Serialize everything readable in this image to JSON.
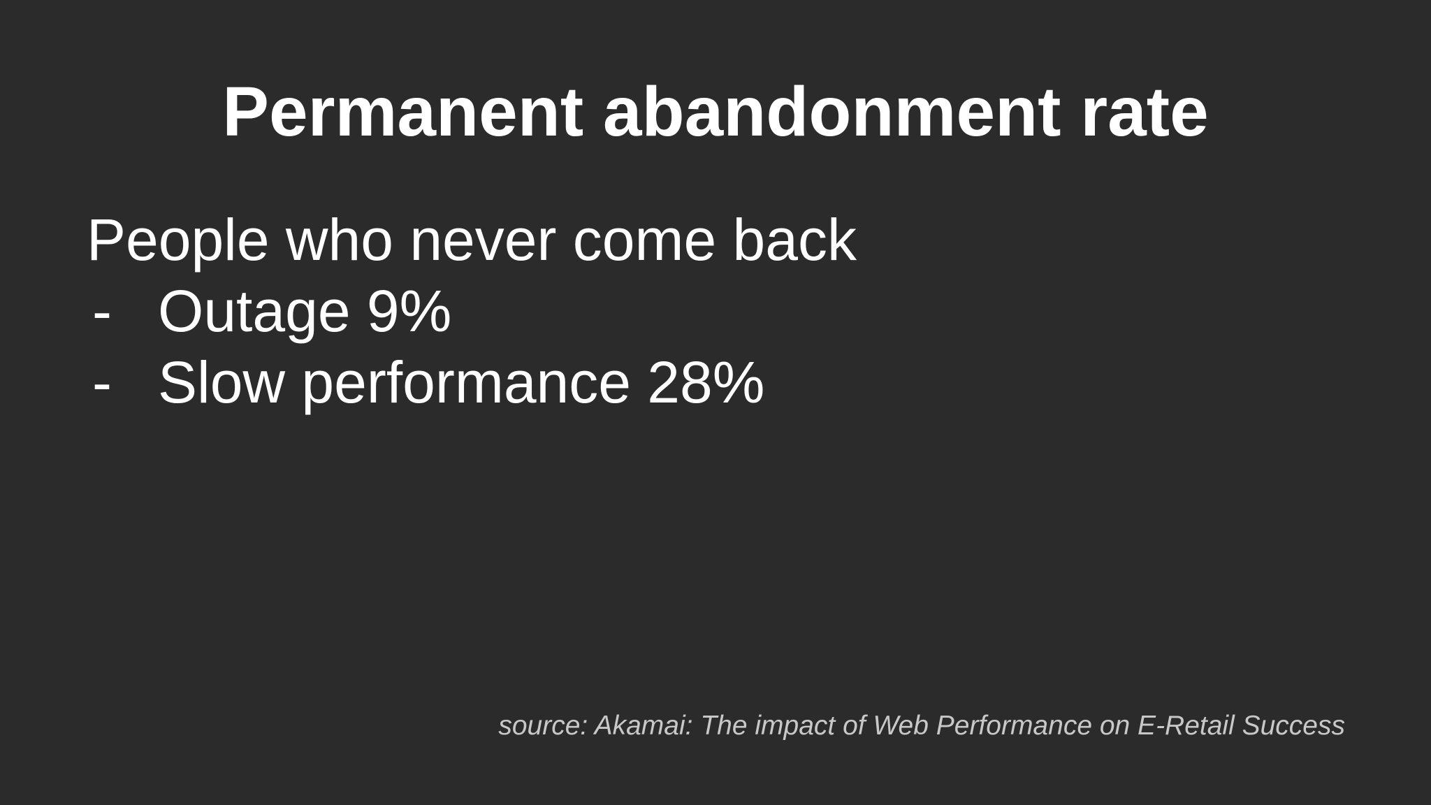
{
  "slide": {
    "title": "Permanent abandonment rate",
    "lead": "People who never come back",
    "bullets": [
      {
        "marker": "-",
        "text": "Outage 9%"
      },
      {
        "marker": "-",
        "text": "Slow performance 28%"
      }
    ],
    "source": "source: Akamai: The impact of Web Performance on E-Retail Success"
  },
  "colors": {
    "background": "#2b2b2b",
    "text": "#ffffff",
    "source_text": "#c8c8c8"
  }
}
